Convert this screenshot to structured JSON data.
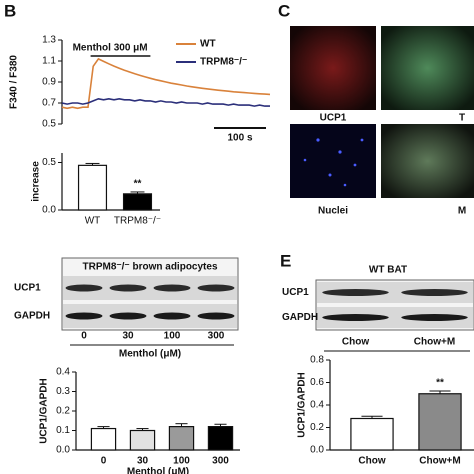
{
  "panel_labels": [
    "B",
    "C",
    "E"
  ],
  "chart_data": [
    {
      "type": "line",
      "ylabel": "F340 / F380",
      "x": [
        0,
        10,
        20,
        30,
        40,
        50,
        60,
        70,
        80,
        90,
        100,
        110,
        120,
        130,
        140,
        150,
        160,
        170,
        180,
        190,
        200,
        210,
        220,
        230,
        240,
        250,
        260,
        270,
        280,
        290,
        300,
        310,
        320,
        330,
        340,
        350,
        360,
        370,
        380,
        390,
        400
      ],
      "xlim": [
        0,
        400
      ],
      "ylim": [
        0.5,
        1.3
      ],
      "yticks": [
        0.5,
        0.7,
        0.9,
        1.1,
        1.3
      ],
      "series": [
        {
          "name": "WT",
          "color": "#d9823b",
          "values": [
            0.66,
            0.65,
            0.66,
            0.65,
            0.66,
            0.66,
            1.05,
            1.12,
            1.096,
            1.073,
            1.051,
            1.031,
            1.012,
            0.995,
            0.978,
            0.963,
            0.949,
            0.935,
            0.922,
            0.911,
            0.9,
            0.889,
            0.88,
            0.871,
            0.862,
            0.854,
            0.847,
            0.84,
            0.834,
            0.828,
            0.822,
            0.817,
            0.812,
            0.807,
            0.803,
            0.799,
            0.795,
            0.791,
            0.788,
            0.785,
            0.782
          ]
        },
        {
          "name": "TRPM8⁻/⁻",
          "color": "#2b2f7a",
          "values": [
            0.7,
            0.69,
            0.7,
            0.7,
            0.69,
            0.7,
            0.72,
            0.74,
            0.73,
            0.74,
            0.73,
            0.74,
            0.73,
            0.73,
            0.72,
            0.73,
            0.72,
            0.72,
            0.71,
            0.72,
            0.71,
            0.71,
            0.7,
            0.71,
            0.7,
            0.7,
            0.7,
            0.69,
            0.7,
            0.69,
            0.69,
            0.69,
            0.68,
            0.69,
            0.68,
            0.68,
            0.68,
            0.67,
            0.68,
            0.67,
            0.67
          ]
        }
      ],
      "stimulus": {
        "label": "Menthol 300 μM",
        "start": 55,
        "end": 170
      },
      "scale_bar": {
        "label": "100 s",
        "length": 100
      }
    },
    {
      "type": "bar",
      "ylabel": "increase",
      "categories": [
        "WT",
        "TRPM8⁻/⁻"
      ],
      "values": [
        0.47,
        0.17
      ],
      "errors": [
        0.02,
        0.02
      ],
      "colors": [
        "#ffffff",
        "#000000"
      ],
      "ylim": [
        0,
        0.6
      ],
      "yticks": [
        {
          "value": 0,
          "label": "0.0"
        },
        0.5
      ],
      "annotations": [
        {
          "text": "**",
          "at": 1
        }
      ]
    },
    {
      "type": "bar",
      "ylabel": "UCP1/GAPDH",
      "xlabel": "Menthol (μM)",
      "categories": [
        "0",
        "30",
        "100",
        "300"
      ],
      "values": [
        0.11,
        0.1,
        0.12,
        0.12
      ],
      "errors": [
        0.01,
        0.01,
        0.015,
        0.012
      ],
      "colors": [
        "#ffffff",
        "#e2e2e2",
        "#9a9a9a",
        "#000000"
      ],
      "ylim": [
        0,
        0.4
      ],
      "yticks": [
        {
          "value": 0,
          "label": "0.0"
        },
        0.1,
        0.2,
        0.3,
        0.4
      ],
      "annotations": []
    },
    {
      "type": "bar",
      "ylabel": "UCP1/GAPDH",
      "categories": [
        "Chow",
        "Chow+M"
      ],
      "values": [
        0.28,
        0.5
      ],
      "errors": [
        0.02,
        0.025
      ],
      "colors": [
        "#ffffff",
        "#8a8a8a"
      ],
      "ylim": [
        0,
        0.8
      ],
      "yticks": [
        {
          "value": 0,
          "label": "0.0"
        },
        0.2,
        0.4,
        0.6,
        0.8
      ],
      "annotations": [
        {
          "text": "**",
          "at": 1
        }
      ]
    }
  ],
  "images": {
    "labels": [
      "UCP1",
      "T",
      "Nuclei",
      "M"
    ]
  },
  "blots": [
    {
      "title": "TRPM8⁻/⁻ brown adipocytes",
      "rows": [
        "UCP1",
        "GAPDH"
      ],
      "lanes": [
        "0",
        "30",
        "100",
        "300"
      ],
      "xlabel": "Menthol (μM)"
    },
    {
      "title": "WT BAT",
      "rows": [
        "UCP1",
        "GAPDH"
      ],
      "lanes": [
        "Chow",
        "Chow+M"
      ]
    }
  ]
}
